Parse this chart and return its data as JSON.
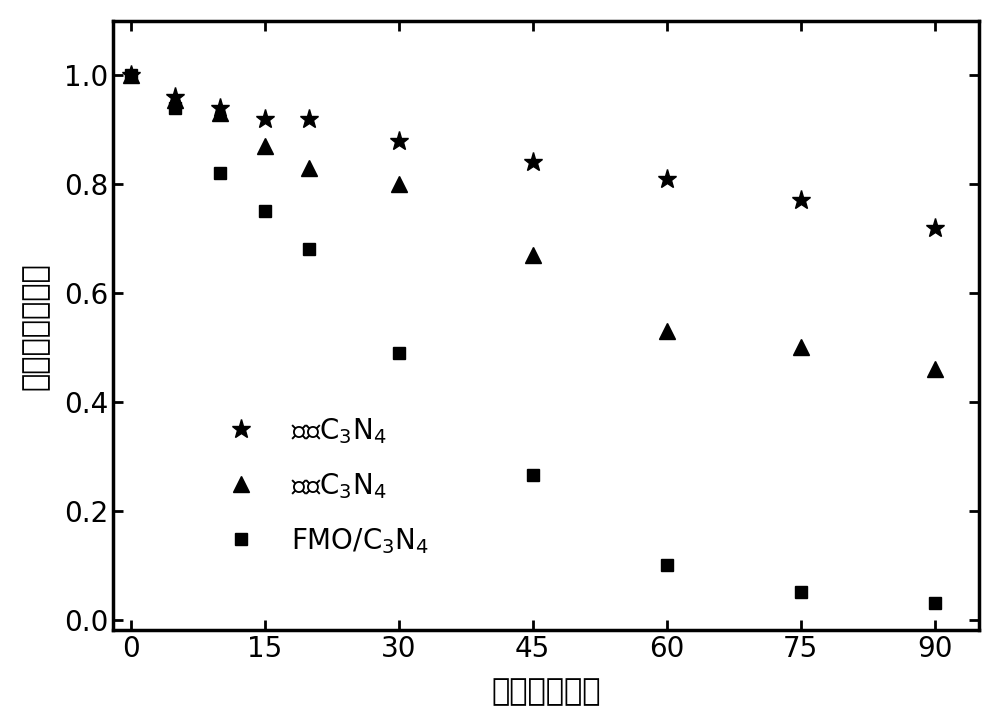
{
  "bulk_c3n4": {
    "x": [
      0,
      5,
      10,
      15,
      20,
      30,
      45,
      60,
      75,
      90
    ],
    "y": [
      1.0,
      0.96,
      0.94,
      0.92,
      0.92,
      0.88,
      0.84,
      0.81,
      0.77,
      0.72
    ]
  },
  "sheet_c3n4": {
    "x": [
      0,
      5,
      10,
      15,
      20,
      30,
      45,
      60,
      75,
      90
    ],
    "y": [
      1.0,
      0.955,
      0.93,
      0.87,
      0.83,
      0.8,
      0.67,
      0.53,
      0.5,
      0.46
    ]
  },
  "fmo_c3n4": {
    "x": [
      0,
      5,
      10,
      15,
      20,
      30,
      45,
      60,
      75,
      90
    ],
    "y": [
      1.0,
      0.94,
      0.82,
      0.75,
      0.68,
      0.49,
      0.265,
      0.1,
      0.05,
      0.03
    ]
  },
  "xlabel": "时间（分钟）",
  "ylabel": "浓度／初始浓度",
  "xlim": [
    -2,
    95
  ],
  "ylim": [
    -0.02,
    1.1
  ],
  "xticks": [
    0,
    15,
    30,
    45,
    60,
    75,
    90
  ],
  "yticks": [
    0.0,
    0.2,
    0.4,
    0.6,
    0.8,
    1.0
  ],
  "marker_color": "#000000",
  "background_color": "#ffffff",
  "fig_width": 10.0,
  "fig_height": 7.27,
  "marker_size_star": 14,
  "marker_size_triangle": 11,
  "marker_size_square": 9
}
